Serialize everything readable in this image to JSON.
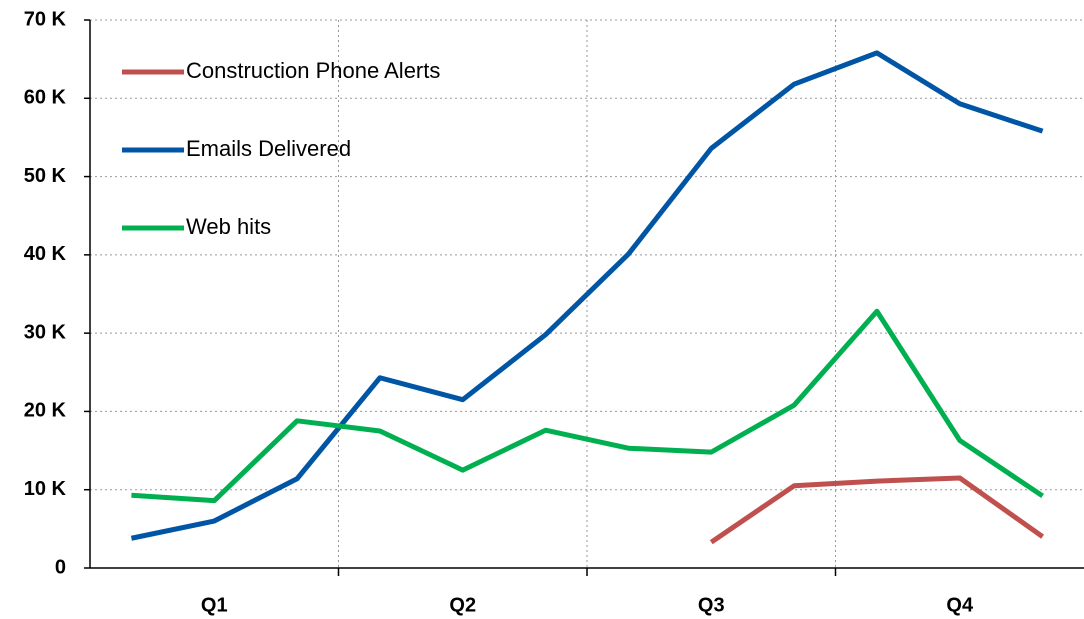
{
  "chart_data": {
    "type": "line",
    "categories": [
      null,
      "Q1",
      null,
      null,
      "Q2",
      null,
      null,
      "Q3",
      null,
      null,
      "Q4",
      null
    ],
    "series": [
      {
        "name": "Construction Phone Alerts",
        "color": "#c0504d",
        "values": [
          null,
          null,
          null,
          null,
          null,
          null,
          null,
          3300,
          10500,
          11100,
          11500,
          4000
        ]
      },
      {
        "name": "Emails Delivered",
        "color": "#0055a5",
        "values": [
          3800,
          6000,
          11400,
          24300,
          21500,
          29800,
          40100,
          53600,
          61800,
          65800,
          59300,
          55800
        ]
      },
      {
        "name": "Web hits",
        "color": "#00b050",
        "values": [
          9300,
          8600,
          18800,
          17500,
          12500,
          17600,
          15300,
          14800,
          20800,
          32800,
          16300,
          9200
        ]
      }
    ],
    "ylim": [
      0,
      70000
    ],
    "yticks": [
      {
        "value": 0,
        "label": "0"
      },
      {
        "value": 10000,
        "label": "10 K"
      },
      {
        "value": 20000,
        "label": "20 K"
      },
      {
        "value": 30000,
        "label": "30 K"
      },
      {
        "value": 40000,
        "label": "40 K"
      },
      {
        "value": 50000,
        "label": "50 K"
      },
      {
        "value": 60000,
        "label": "60 K"
      },
      {
        "value": 70000,
        "label": "70 K"
      }
    ],
    "grid": true,
    "legend": "upper left"
  }
}
